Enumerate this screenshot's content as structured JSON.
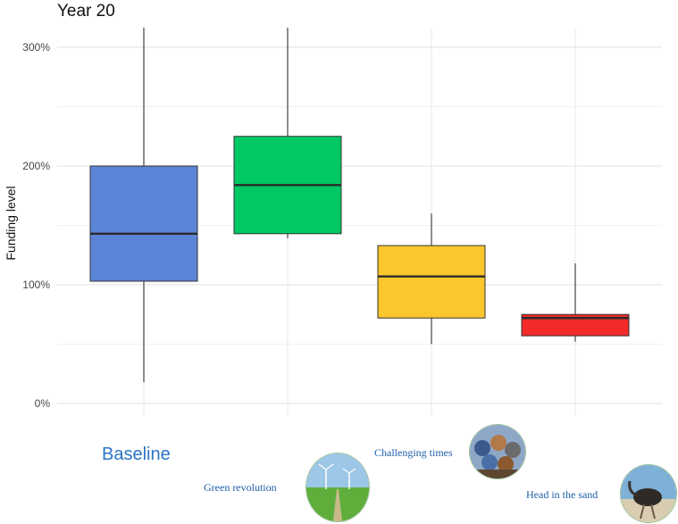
{
  "chart_data": {
    "type": "boxplot",
    "title": "Year 20",
    "xlabel": "",
    "ylabel": "Funding level",
    "ylim": [
      -5,
      317
    ],
    "yticks": [
      0,
      100,
      200,
      300
    ],
    "ytick_labels": [
      "0%",
      "100%",
      "200%",
      "300%"
    ],
    "grid": true,
    "categories": [
      "Baseline",
      "Green revolution",
      "Challenging times",
      "Head in the sand"
    ],
    "boxes": [
      {
        "name": "Baseline",
        "color": "#5b84d6",
        "whisker_low": 18,
        "q1": 103,
        "median": 143,
        "q3": 200,
        "whisker_high": 317
      },
      {
        "name": "Green revolution",
        "color": "#00c864",
        "whisker_low": 139,
        "q1": 143,
        "median": 184,
        "q3": 225,
        "whisker_high": 317
      },
      {
        "name": "Challenging times",
        "color": "#fcc62d",
        "whisker_low": 50,
        "q1": 72,
        "median": 107,
        "q3": 133,
        "whisker_high": 160
      },
      {
        "name": "Head in the sand",
        "color": "#f22a2a",
        "whisker_low": 52,
        "q1": 57,
        "median": 72,
        "q3": 75,
        "whisker_high": 118
      }
    ]
  },
  "scenario_icons": [
    "wind-farm-photo-icon",
    "oil-barrels-photo-icon",
    "ostrich-photo-icon"
  ]
}
